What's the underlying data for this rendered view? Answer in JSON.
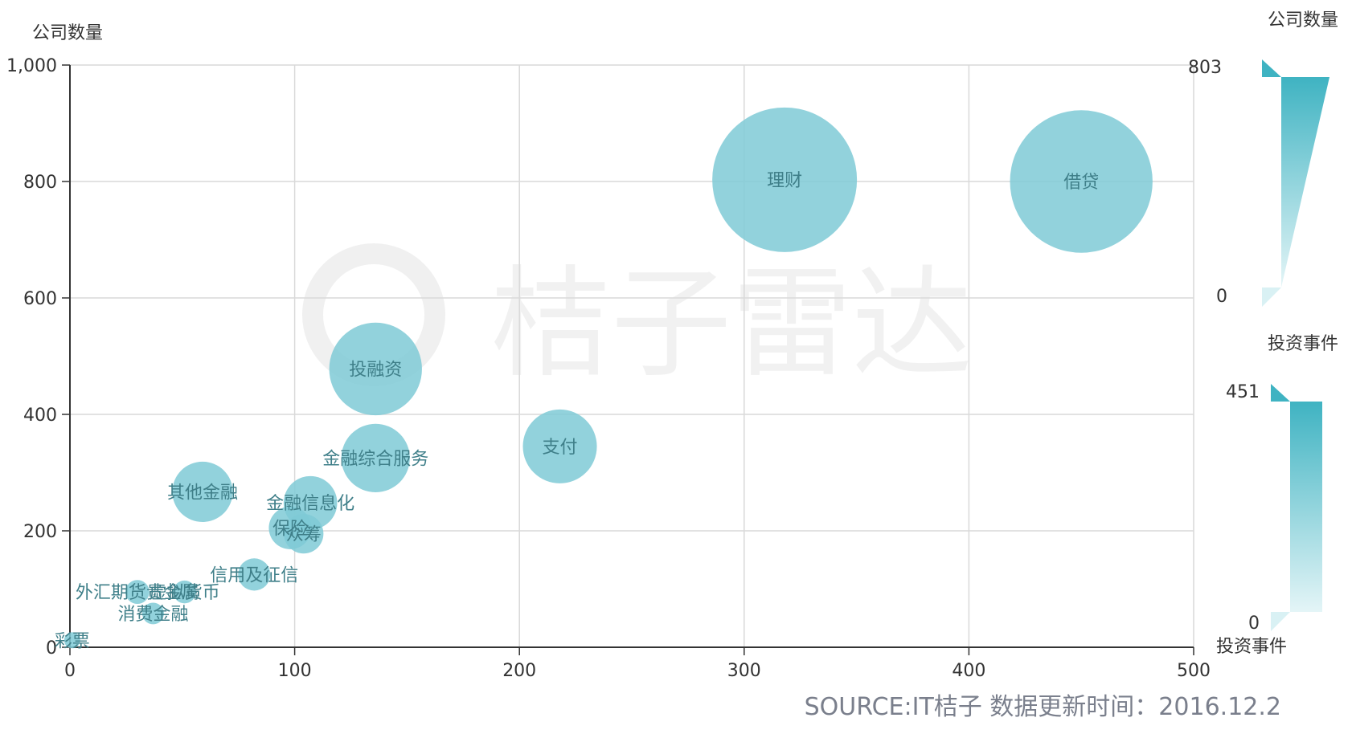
{
  "chart_data": {
    "type": "scatter",
    "y_axis_title": "公司数量",
    "xlim": [
      0,
      500
    ],
    "ylim": [
      0,
      1000
    ],
    "x_ticks": [
      "0",
      "100",
      "200",
      "300",
      "400",
      "500"
    ],
    "y_ticks": [
      "0",
      "200",
      "400",
      "600",
      "800",
      "1,000"
    ],
    "grid": true,
    "bubble_color": "#7fcad6",
    "bubble_label_color": "#3f7f89",
    "series": [
      {
        "label": "理财",
        "x": 318,
        "y": 803,
        "size": 803
      },
      {
        "label": "借贷",
        "x": 450,
        "y": 800,
        "size": 780
      },
      {
        "label": "投融资",
        "x": 136,
        "y": 478,
        "size": 330
      },
      {
        "label": "支付",
        "x": 218,
        "y": 345,
        "size": 210
      },
      {
        "label": "金融综合服务",
        "x": 136,
        "y": 325,
        "size": 180
      },
      {
        "label": "其他金融",
        "x": 59,
        "y": 267,
        "size": 140
      },
      {
        "label": "金融信息化",
        "x": 107,
        "y": 248,
        "size": 110
      },
      {
        "label": "保险",
        "x": 98,
        "y": 205,
        "size": 70
      },
      {
        "label": "众筹",
        "x": 104,
        "y": 195,
        "size": 60
      },
      {
        "label": "信用及征信",
        "x": 82,
        "y": 125,
        "size": 40
      },
      {
        "label": "外汇期货贵金属",
        "x": 30,
        "y": 95,
        "size": 22
      },
      {
        "label": "虚拟货币",
        "x": 51,
        "y": 95,
        "size": 20
      },
      {
        "label": "消费金融",
        "x": 37,
        "y": 58,
        "size": 18
      },
      {
        "label": "彩票",
        "x": 1,
        "y": 12,
        "size": 6
      }
    ],
    "legends": [
      {
        "title": "公司数量",
        "max": "803",
        "min": "0",
        "title_position": "top"
      },
      {
        "title": "投资事件",
        "max": "451",
        "min": "0",
        "title_position": "top-and-bottom"
      }
    ],
    "legend_colors": {
      "dark": "#3fb3c2",
      "light": "#d9f1f4"
    }
  },
  "watermark": "桔子雷达",
  "source": "SOURCE:IT桔子 数据更新时间：2016.12.2"
}
